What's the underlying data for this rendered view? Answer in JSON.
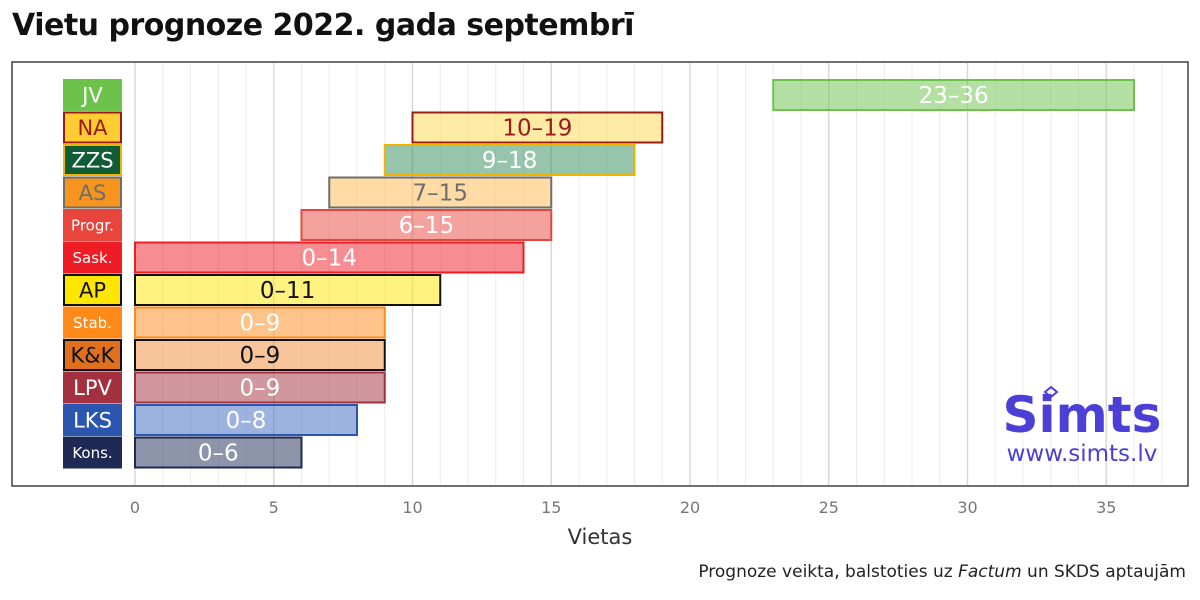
{
  "title": "Vietu prognoze 2022. gada septembrī",
  "footnote": {
    "before": "Prognoze veikta, balstoties uz ",
    "italic": "Factum",
    "after": " un SKDS aptaujām"
  },
  "brand": {
    "name": "Simts",
    "url": "www.simts.lv",
    "color": "#4b3fd6"
  },
  "chart_data": {
    "type": "bar",
    "orientation": "horizontal-range",
    "title": "Vietu prognoze 2022. gada septembrī",
    "xlabel": "Vietas",
    "ylabel": "",
    "xlim": [
      0,
      37
    ],
    "xticks": [
      0,
      5,
      10,
      15,
      20,
      25,
      30,
      35
    ],
    "grid": true,
    "legend": "none",
    "categories": [
      "JV",
      "NA",
      "ZZS",
      "AS",
      "Progr.",
      "Sask.",
      "AP",
      "Stab.",
      "K&K",
      "LPV",
      "LKS",
      "Kons."
    ],
    "ranges": [
      {
        "party": "JV",
        "min": 23,
        "max": 36,
        "label": "23–36",
        "fill": "#6cc24a",
        "stroke": "#6cc24a",
        "labelBg": "#6cc24a",
        "labelBorder": "#6cc24a",
        "labelColor": "#ffffff",
        "valueColor": "#ffffff"
      },
      {
        "party": "NA",
        "min": 10,
        "max": 19,
        "label": "10–19",
        "fill": "#ffd84a",
        "stroke": "#9b1b1b",
        "labelBg": "#ffcc33",
        "labelBorder": "#9b1b1b",
        "labelColor": "#9b1b1b",
        "valueColor": "#9b1b1b"
      },
      {
        "party": "ZZS",
        "min": 9,
        "max": 18,
        "label": "9–18",
        "fill": "#2e8b57",
        "stroke": "#f0b400",
        "labelBg": "#0f5c36",
        "labelBorder": "#f0b400",
        "labelColor": "#ffffff",
        "valueColor": "#ffffff"
      },
      {
        "party": "AS",
        "min": 7,
        "max": 15,
        "label": "7–15",
        "fill": "#ffb84d",
        "stroke": "#6e6e6e",
        "labelBg": "#f7941d",
        "labelBorder": "#6e6e6e",
        "labelColor": "#6e6e6e",
        "valueColor": "#6e6e6e"
      },
      {
        "party": "Progr.",
        "min": 6,
        "max": 15,
        "label": "6–15",
        "fill": "#e8453c",
        "stroke": "#e8453c",
        "labelBg": "#e8453c",
        "labelBorder": "#e8453c",
        "labelColor": "#ffffff",
        "valueColor": "#ffffff"
      },
      {
        "party": "Sask.",
        "min": 0,
        "max": 14,
        "label": "0–14",
        "fill": "#ee1c25",
        "stroke": "#ee1c25",
        "labelBg": "#ee1c25",
        "labelBorder": "#ee1c25",
        "labelColor": "#ffffff",
        "valueColor": "#ffffff"
      },
      {
        "party": "AP",
        "min": 0,
        "max": 11,
        "label": "0–11",
        "fill": "#ffe600",
        "stroke": "#111111",
        "labelBg": "#ffe600",
        "labelBorder": "#111111",
        "labelColor": "#111111",
        "valueColor": "#111111"
      },
      {
        "party": "Stab.",
        "min": 0,
        "max": 9,
        "label": "0–9",
        "fill": "#ff8a1a",
        "stroke": "#ff8a1a",
        "labelBg": "#ff8a1a",
        "labelBorder": "#ff8a1a",
        "labelColor": "#ffffff",
        "valueColor": "#ffffff"
      },
      {
        "party": "K&K",
        "min": 0,
        "max": 9,
        "label": "0–9",
        "fill": "#f28c38",
        "stroke": "#111111",
        "labelBg": "#e0701c",
        "labelBorder": "#111111",
        "labelColor": "#111111",
        "valueColor": "#111111"
      },
      {
        "party": "LPV",
        "min": 0,
        "max": 9,
        "label": "0–9",
        "fill": "#a3303e",
        "stroke": "#a3303e",
        "labelBg": "#a3303e",
        "labelBorder": "#a3303e",
        "labelColor": "#ffffff",
        "valueColor": "#ffffff"
      },
      {
        "party": "LKS",
        "min": 0,
        "max": 8,
        "label": "0–8",
        "fill": "#3a67c2",
        "stroke": "#2a56b0",
        "labelBg": "#2a56b0",
        "labelBorder": "#2a56b0",
        "labelColor": "#ffffff",
        "valueColor": "#ffffff"
      },
      {
        "party": "Kons.",
        "min": 0,
        "max": 6,
        "label": "0–6",
        "fill": "#1e2a55",
        "stroke": "#1e2a55",
        "labelBg": "#1e2a55",
        "labelBorder": "#1e2a55",
        "labelColor": "#ffffff",
        "valueColor": "#ffffff"
      }
    ]
  }
}
